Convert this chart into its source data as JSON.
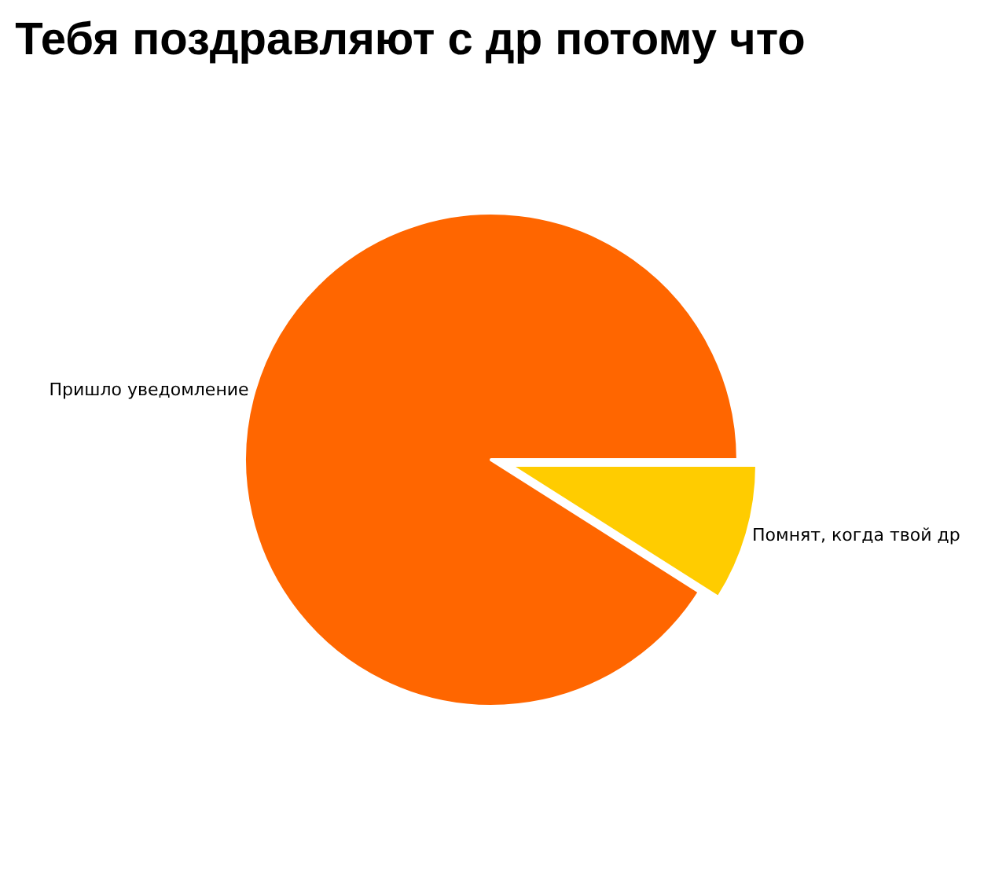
{
  "chart_data": {
    "type": "pie",
    "title": "Тебя поздравляют с др потому что",
    "categories": [
      "Помнят, когда твой др",
      "Пришло уведомление"
    ],
    "values": [
      9,
      91
    ],
    "colors": [
      "#ffcc00",
      "#ff6600"
    ],
    "legend": false
  }
}
